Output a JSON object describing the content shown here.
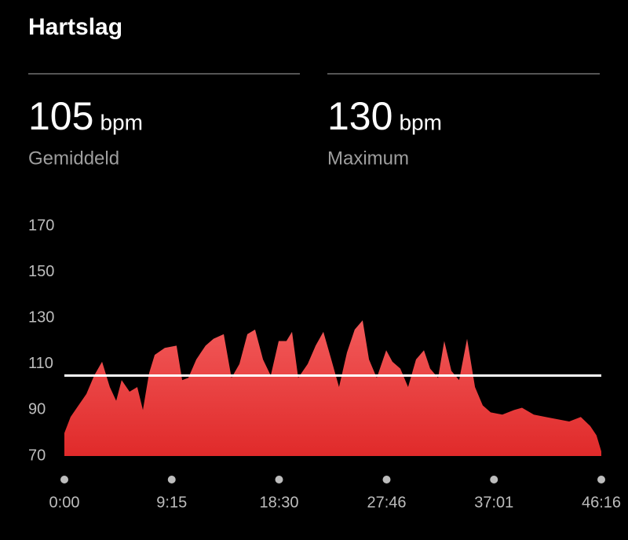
{
  "header": {
    "title": "Hartslag"
  },
  "stats": [
    {
      "value": 105,
      "unit": "bpm",
      "label": "Gemiddeld"
    },
    {
      "value": 130,
      "unit": "bpm",
      "label": "Maximum"
    }
  ],
  "chart_data": {
    "type": "area",
    "x": [
      0,
      32,
      73,
      114,
      154,
      195,
      235,
      268,
      296,
      337,
      377,
      406,
      438,
      467,
      519,
      580,
      609,
      641,
      682,
      730,
      771,
      824,
      864,
      905,
      946,
      986,
      1027,
      1067,
      1108,
      1148,
      1177,
      1209,
      1258,
      1299,
      1339,
      1380,
      1420,
      1461,
      1501,
      1542,
      1575,
      1615,
      1664,
      1696,
      1737,
      1777,
      1818,
      1859,
      1891,
      1932,
      1964,
      2001,
      2041,
      2082,
      2123,
      2163,
      2204,
      2264,
      2325,
      2366,
      2427,
      2488,
      2549,
      2610,
      2670,
      2719,
      2751,
      2776
    ],
    "values": [
      80,
      87,
      92,
      97,
      105,
      111,
      100,
      94,
      103,
      98,
      100,
      90,
      106,
      114,
      117,
      118,
      103,
      104,
      112,
      118,
      121,
      123,
      104,
      110,
      123,
      125,
      112,
      105,
      120,
      120,
      124,
      104,
      110,
      118,
      124,
      112,
      100,
      115,
      125,
      129,
      112,
      104,
      116,
      111,
      108,
      100,
      112,
      116,
      108,
      104,
      120,
      107,
      103,
      121,
      100,
      92,
      89,
      88,
      90,
      91,
      88,
      87,
      86,
      85,
      87,
      83,
      79,
      72
    ],
    "color": "#e53935",
    "xlim": [
      0,
      2776
    ],
    "xticks": [
      {
        "value": 0,
        "label": "0:00"
      },
      {
        "value": 555,
        "label": "9:15"
      },
      {
        "value": 1110,
        "label": "18:30"
      },
      {
        "value": 1666,
        "label": "27:46"
      },
      {
        "value": 2221,
        "label": "37:01"
      },
      {
        "value": 2776,
        "label": "46:16"
      }
    ],
    "ylim": [
      70,
      170
    ],
    "yticks": [
      70,
      90,
      110,
      130,
      150,
      170
    ]
  }
}
